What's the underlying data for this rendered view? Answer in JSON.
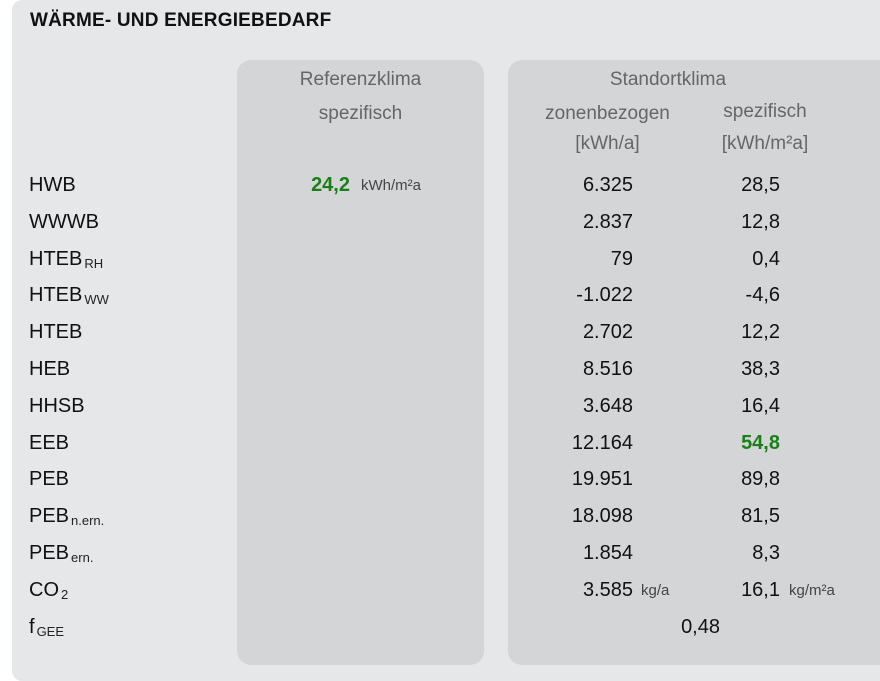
{
  "title": "WÄRME- UND ENERGIEBEDARF",
  "headers": {
    "ref_line1": "Referenzklima",
    "ref_line2": "spezifisch",
    "site_title": "Standortklima",
    "zonen": "zonenbezogen",
    "zonen_unit": "[kWh/a]",
    "spez": "spezifisch",
    "spez_unit": "[kWh/m²a]"
  },
  "rows": [
    {
      "label": "HWB",
      "sub": "",
      "ref": "24,2",
      "ref_unit": "kWh/m²a",
      "zonen": "6.325",
      "spez": "28,5"
    },
    {
      "label": "WWWB",
      "sub": "",
      "zonen": "2.837",
      "spez": "12,8"
    },
    {
      "label": "HTEB",
      "sub": "RH",
      "zonen": "79",
      "spez": "0,4"
    },
    {
      "label": "HTEB",
      "sub": "WW",
      "zonen": "-1.022",
      "spez": "-4,6"
    },
    {
      "label": "HTEB",
      "sub": "",
      "zonen": "2.702",
      "spez": "12,2"
    },
    {
      "label": "HEB",
      "sub": "",
      "zonen": "8.516",
      "spez": "38,3"
    },
    {
      "label": "HHSB",
      "sub": "",
      "zonen": "3.648",
      "spez": "16,4"
    },
    {
      "label": "EEB",
      "sub": "",
      "zonen": "12.164",
      "spez": "54,8"
    },
    {
      "label": "PEB",
      "sub": "",
      "zonen": "19.951",
      "spez": "89,8"
    },
    {
      "label": "PEB",
      "sub": "n.ern.",
      "zonen": "18.098",
      "spez": "81,5"
    },
    {
      "label": "PEB",
      "sub": "ern.",
      "zonen": "1.854",
      "spez": "8,3"
    },
    {
      "label": "CO",
      "sub": "2",
      "zonen": "3.585",
      "zonen_unit": "kg/a",
      "spez": "16,1",
      "spez_unit": "kg/m²a"
    },
    {
      "label": "f",
      "sub": "GEE",
      "combined": "0,48"
    }
  ],
  "colors": {
    "highlight": "#1a7f1a",
    "panel": "#e6e7e8",
    "column_box": "#d4d5d7"
  }
}
